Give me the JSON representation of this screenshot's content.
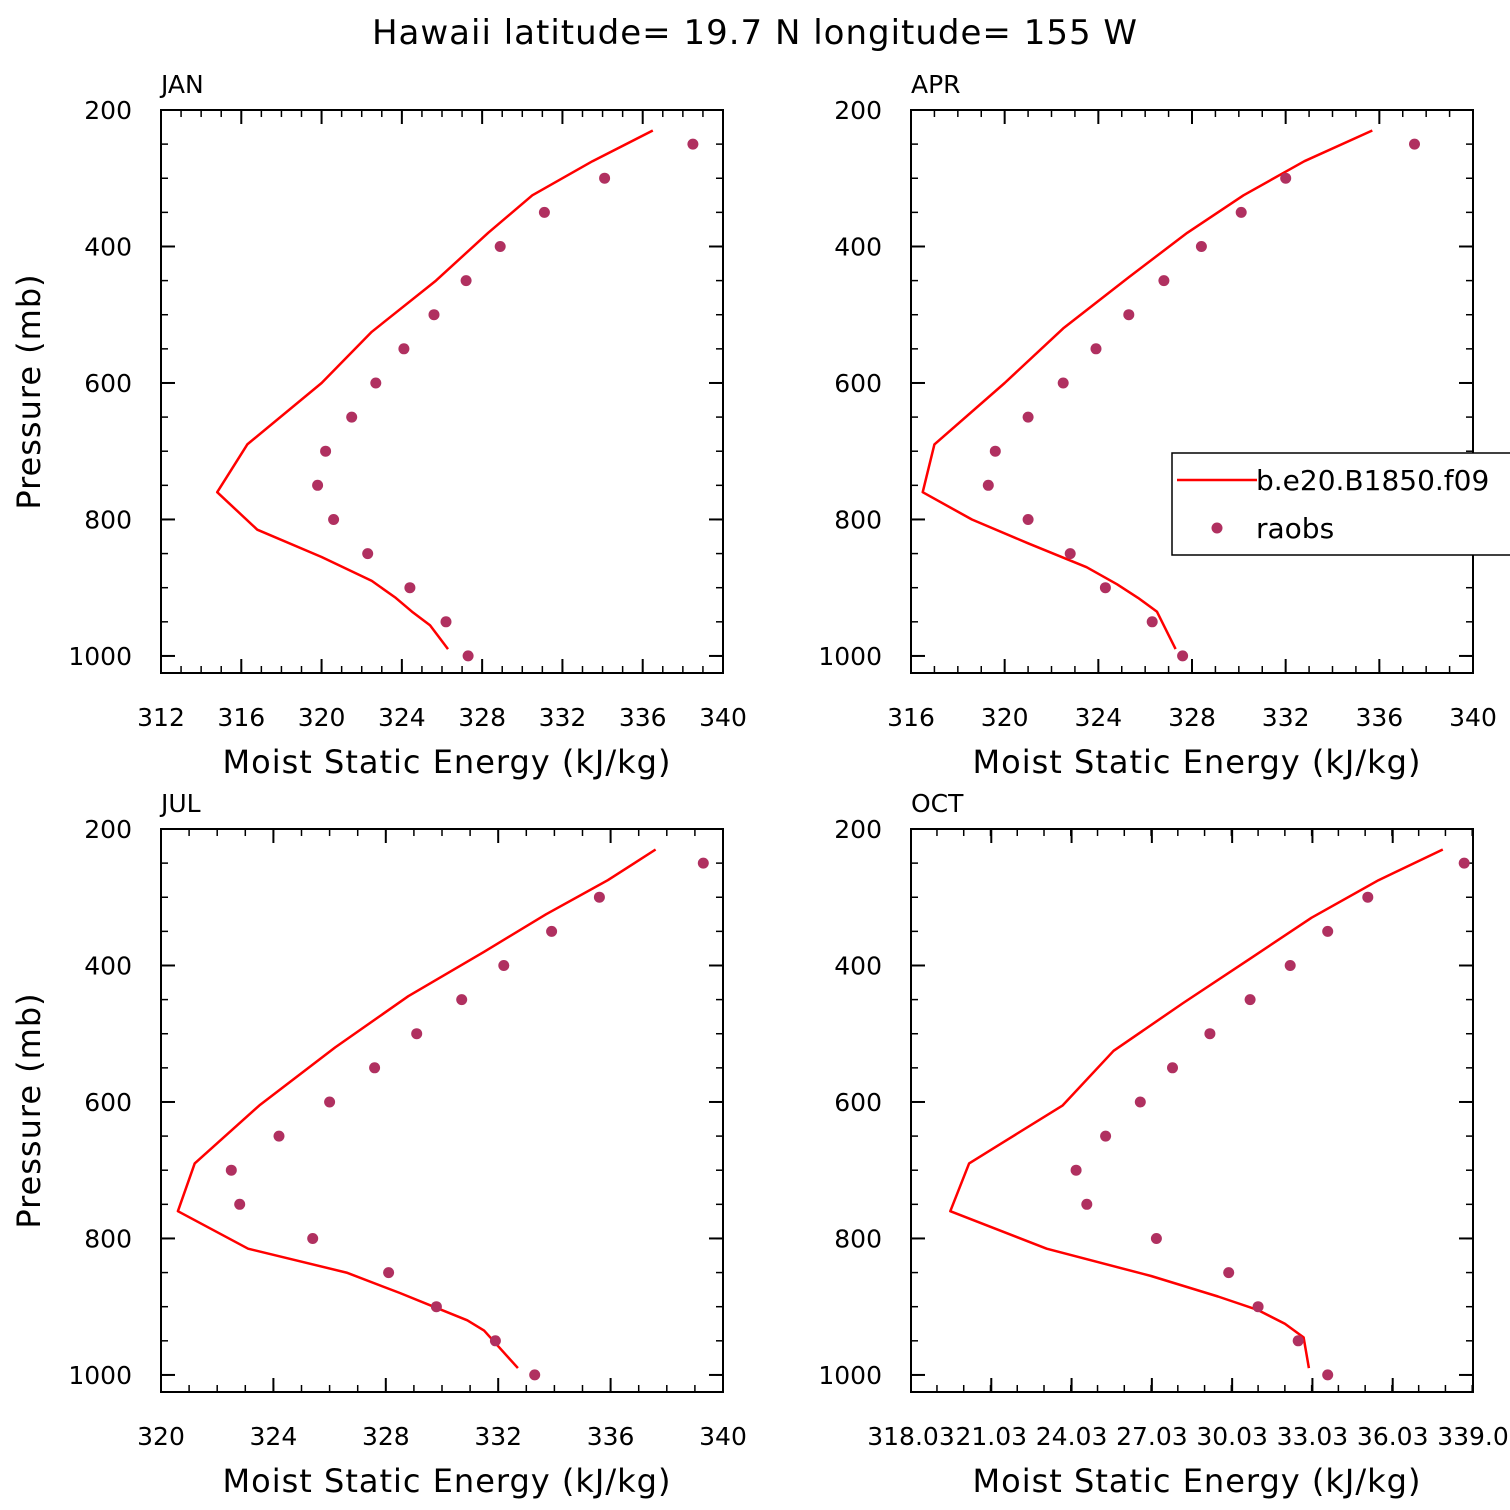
{
  "title": "Hawaii  latitude= 19.7 N longitude= 155 W",
  "chart_data": [
    {
      "type": "line",
      "panel": "JAN",
      "xlabel": "Moist Static Energy (kJ/kg)",
      "ylabel": "Pressure (mb)",
      "xlim": [
        312,
        340
      ],
      "ylim": [
        200,
        1025
      ],
      "y_inverted": true,
      "xticks": [
        "312",
        "316",
        "320",
        "324",
        "328",
        "332",
        "336",
        "340"
      ],
      "yticks": [
        "200",
        "400",
        "600",
        "800",
        "1000"
      ],
      "series": [
        {
          "name": "b.e20.B1850.f09",
          "style": "line",
          "color": "#ff0000",
          "x": [
            336.5,
            333.5,
            330.5,
            328.3,
            325.7,
            322.5,
            320.0,
            316.3,
            314.8,
            316.8,
            320.0,
            322.5,
            323.7,
            324.5,
            325.4,
            326.3
          ],
          "y": [
            230,
            275,
            325,
            380,
            450,
            525,
            600,
            690,
            760,
            815,
            855,
            890,
            915,
            935,
            955,
            990
          ]
        },
        {
          "name": "raobs",
          "style": "marker",
          "color": "#b03060",
          "x": [
            338.5,
            334.1,
            331.1,
            328.9,
            327.2,
            325.6,
            324.1,
            322.7,
            321.5,
            320.2,
            319.8,
            320.6,
            322.3,
            324.4,
            326.2,
            327.3
          ],
          "y": [
            250,
            300,
            350,
            400,
            450,
            500,
            550,
            600,
            650,
            700,
            750,
            800,
            850,
            900,
            950,
            1000
          ]
        }
      ]
    },
    {
      "type": "line",
      "panel": "APR",
      "xlabel": "Moist Static Energy (kJ/kg)",
      "ylabel": "",
      "xlim": [
        316,
        340
      ],
      "ylim": [
        200,
        1025
      ],
      "y_inverted": true,
      "xticks": [
        "316",
        "320",
        "324",
        "328",
        "332",
        "336",
        "340"
      ],
      "yticks": [
        "200",
        "400",
        "600",
        "800",
        "1000"
      ],
      "legend": {
        "position": "right",
        "entries": [
          "b.e20.B1850.f09",
          "raobs"
        ]
      },
      "series": [
        {
          "name": "b.e20.B1850.f09",
          "style": "line",
          "color": "#ff0000",
          "x": [
            335.7,
            332.8,
            330.2,
            327.8,
            325.3,
            322.5,
            320.0,
            317.0,
            316.5,
            318.6,
            321.0,
            323.5,
            324.8,
            325.7,
            326.5,
            327.3
          ],
          "y": [
            230,
            275,
            325,
            380,
            445,
            520,
            600,
            690,
            760,
            800,
            835,
            870,
            895,
            915,
            935,
            990
          ]
        },
        {
          "name": "raobs",
          "style": "marker",
          "color": "#b03060",
          "x": [
            337.5,
            332.0,
            330.1,
            328.4,
            326.8,
            325.3,
            323.9,
            322.5,
            321.0,
            319.6,
            319.3,
            321.0,
            322.8,
            324.3,
            326.3,
            327.6
          ],
          "y": [
            250,
            300,
            350,
            400,
            450,
            500,
            550,
            600,
            650,
            700,
            750,
            800,
            850,
            900,
            950,
            1000
          ]
        }
      ]
    },
    {
      "type": "line",
      "panel": "JUL",
      "xlabel": "Moist Static Energy (kJ/kg)",
      "ylabel": "Pressure (mb)",
      "xlim": [
        320,
        340
      ],
      "ylim": [
        200,
        1025
      ],
      "y_inverted": true,
      "xticks": [
        "320",
        "324",
        "328",
        "332",
        "336",
        "340"
      ],
      "yticks": [
        "200",
        "400",
        "600",
        "800",
        "1000"
      ],
      "series": [
        {
          "name": "b.e20.B1850.f09",
          "style": "line",
          "color": "#ff0000",
          "x": [
            337.6,
            335.9,
            333.7,
            331.5,
            328.8,
            326.2,
            323.5,
            321.2,
            320.6,
            323.1,
            326.6,
            328.5,
            329.7,
            330.9,
            331.5,
            332.7
          ],
          "y": [
            230,
            275,
            325,
            380,
            445,
            520,
            605,
            690,
            760,
            815,
            850,
            880,
            900,
            920,
            935,
            990
          ]
        },
        {
          "name": "raobs",
          "style": "marker",
          "color": "#b03060",
          "x": [
            339.3,
            335.6,
            333.9,
            332.2,
            330.7,
            329.1,
            327.6,
            326.0,
            324.2,
            322.5,
            322.8,
            325.4,
            328.1,
            329.8,
            331.9,
            333.3
          ],
          "y": [
            250,
            300,
            350,
            400,
            450,
            500,
            550,
            600,
            650,
            700,
            750,
            800,
            850,
            900,
            950,
            1000
          ]
        }
      ]
    },
    {
      "type": "line",
      "panel": "OCT",
      "xlabel": "Moist Static Energy (kJ/kg)",
      "ylabel": "",
      "xlim": [
        318.03,
        339.03
      ],
      "ylim": [
        200,
        1025
      ],
      "y_inverted": true,
      "xticks": [
        "318.03",
        "21.03",
        "24.03",
        "27.03",
        "30.03",
        "33.03",
        "36.03",
        "339.0"
      ],
      "yticks": [
        "200",
        "400",
        "600",
        "800",
        "1000"
      ],
      "series": [
        {
          "name": "b.e20.B1850.f09",
          "style": "line",
          "color": "#ff0000",
          "x": [
            337.9,
            335.5,
            333.0,
            330.7,
            328.2,
            325.6,
            323.7,
            320.2,
            319.5,
            323.1,
            327.0,
            329.5,
            331.0,
            332.0,
            332.7,
            332.9
          ],
          "y": [
            230,
            275,
            330,
            390,
            455,
            525,
            605,
            690,
            760,
            815,
            855,
            885,
            905,
            925,
            945,
            990
          ]
        },
        {
          "name": "raobs",
          "style": "marker",
          "color": "#b03060",
          "x": [
            338.7,
            335.1,
            333.6,
            332.2,
            330.7,
            329.2,
            327.8,
            326.6,
            325.3,
            324.2,
            324.6,
            327.2,
            329.9,
            331.0,
            332.5,
            333.6
          ],
          "y": [
            250,
            300,
            350,
            400,
            450,
            500,
            550,
            600,
            650,
            700,
            750,
            800,
            850,
            900,
            950,
            1000
          ]
        }
      ]
    }
  ]
}
